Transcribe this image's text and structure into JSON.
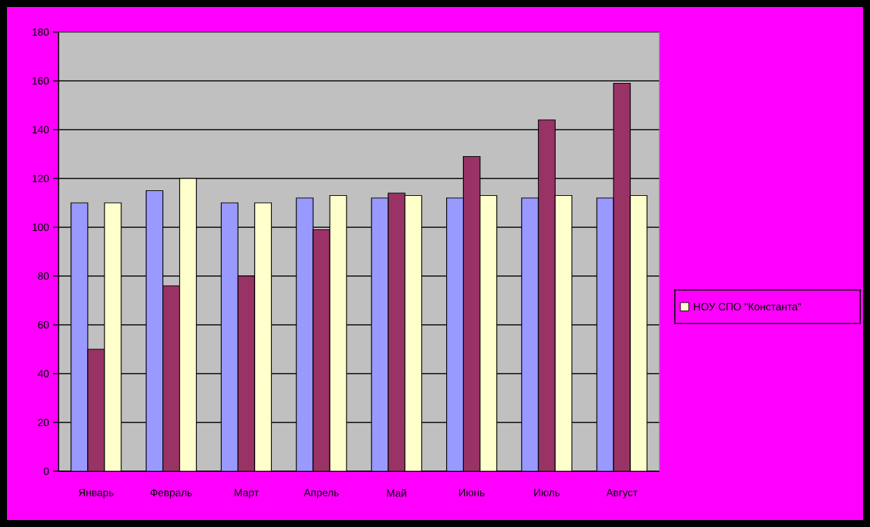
{
  "chart_data": {
    "type": "bar",
    "categories": [
      "Январь",
      "Февраль",
      "Март",
      "Апрель",
      "Май",
      "Июнь",
      "Июль",
      "Август"
    ],
    "series": [
      {
        "color": "#9999ff",
        "values": [
          110,
          115,
          110,
          112,
          112,
          112,
          112,
          112
        ]
      },
      {
        "color": "#993366",
        "values": [
          50,
          76,
          80,
          99,
          114,
          129,
          144,
          159
        ]
      },
      {
        "name": "НОУ СПО \"Константа\"",
        "color": "#ffffcc",
        "values": [
          110,
          120,
          110,
          113,
          113,
          113,
          113,
          113
        ]
      }
    ],
    "ylim": [
      0,
      180
    ],
    "yticks": [
      0,
      20,
      40,
      60,
      80,
      100,
      120,
      140,
      160,
      180
    ],
    "grid": "y",
    "legend": "right"
  }
}
